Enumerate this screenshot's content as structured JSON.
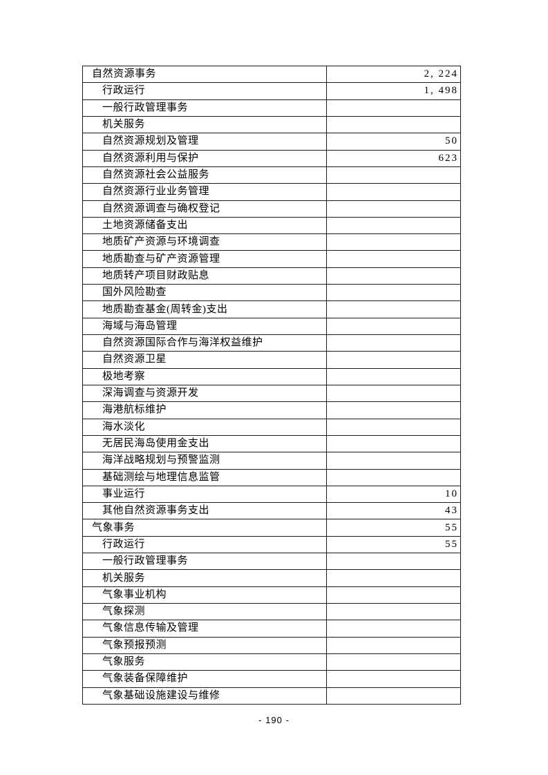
{
  "document": {
    "page_number": "- 190 -"
  },
  "colors": {
    "border": "#1a1a1a",
    "text": "#000000",
    "page_background": "#ffffff"
  },
  "table": {
    "rows": [
      {
        "level": 1,
        "label": "自然资源事务",
        "value": "2, 224"
      },
      {
        "level": 2,
        "label": "行政运行",
        "value": "1, 498"
      },
      {
        "level": 2,
        "label": "一般行政管理事务",
        "value": ""
      },
      {
        "level": 2,
        "label": "机关服务",
        "value": ""
      },
      {
        "level": 2,
        "label": "自然资源规划及管理",
        "value": "50"
      },
      {
        "level": 2,
        "label": "自然资源利用与保护",
        "value": "623"
      },
      {
        "level": 2,
        "label": "自然资源社会公益服务",
        "value": ""
      },
      {
        "level": 2,
        "label": "自然资源行业业务管理",
        "value": ""
      },
      {
        "level": 2,
        "label": "自然资源调查与确权登记",
        "value": ""
      },
      {
        "level": 2,
        "label": "土地资源储备支出",
        "value": ""
      },
      {
        "level": 2,
        "label": "地质矿产资源与环境调查",
        "value": ""
      },
      {
        "level": 2,
        "label": "地质勘查与矿产资源管理",
        "value": ""
      },
      {
        "level": 2,
        "label": "地质转产项目财政贴息",
        "value": ""
      },
      {
        "level": 2,
        "label": "国外风险勘查",
        "value": ""
      },
      {
        "level": 2,
        "label": "地质勘查基金(周转金)支出",
        "value": ""
      },
      {
        "level": 2,
        "label": "海域与海岛管理",
        "value": ""
      },
      {
        "level": 2,
        "label": "自然资源国际合作与海洋权益维护",
        "value": ""
      },
      {
        "level": 2,
        "label": "自然资源卫星",
        "value": ""
      },
      {
        "level": 2,
        "label": "极地考察",
        "value": ""
      },
      {
        "level": 2,
        "label": "深海调查与资源开发",
        "value": ""
      },
      {
        "level": 2,
        "label": "海港航标维护",
        "value": ""
      },
      {
        "level": 2,
        "label": "海水淡化",
        "value": ""
      },
      {
        "level": 2,
        "label": "无居民海岛使用金支出",
        "value": ""
      },
      {
        "level": 2,
        "label": "海洋战略规划与预警监测",
        "value": ""
      },
      {
        "level": 2,
        "label": "基础测绘与地理信息监管",
        "value": ""
      },
      {
        "level": 2,
        "label": "事业运行",
        "value": "10"
      },
      {
        "level": 2,
        "label": "其他自然资源事务支出",
        "value": "43"
      },
      {
        "level": 1,
        "label": "气象事务",
        "value": "55"
      },
      {
        "level": 2,
        "label": "行政运行",
        "value": "55"
      },
      {
        "level": 2,
        "label": "一般行政管理事务",
        "value": ""
      },
      {
        "level": 2,
        "label": "机关服务",
        "value": ""
      },
      {
        "level": 2,
        "label": "气象事业机构",
        "value": ""
      },
      {
        "level": 2,
        "label": "气象探测",
        "value": ""
      },
      {
        "level": 2,
        "label": "气象信息传输及管理",
        "value": ""
      },
      {
        "level": 2,
        "label": "气象预报预测",
        "value": ""
      },
      {
        "level": 2,
        "label": "气象服务",
        "value": ""
      },
      {
        "level": 2,
        "label": "气象装备保障维护",
        "value": ""
      },
      {
        "level": 2,
        "label": "气象基础设施建设与维修",
        "value": ""
      }
    ]
  }
}
